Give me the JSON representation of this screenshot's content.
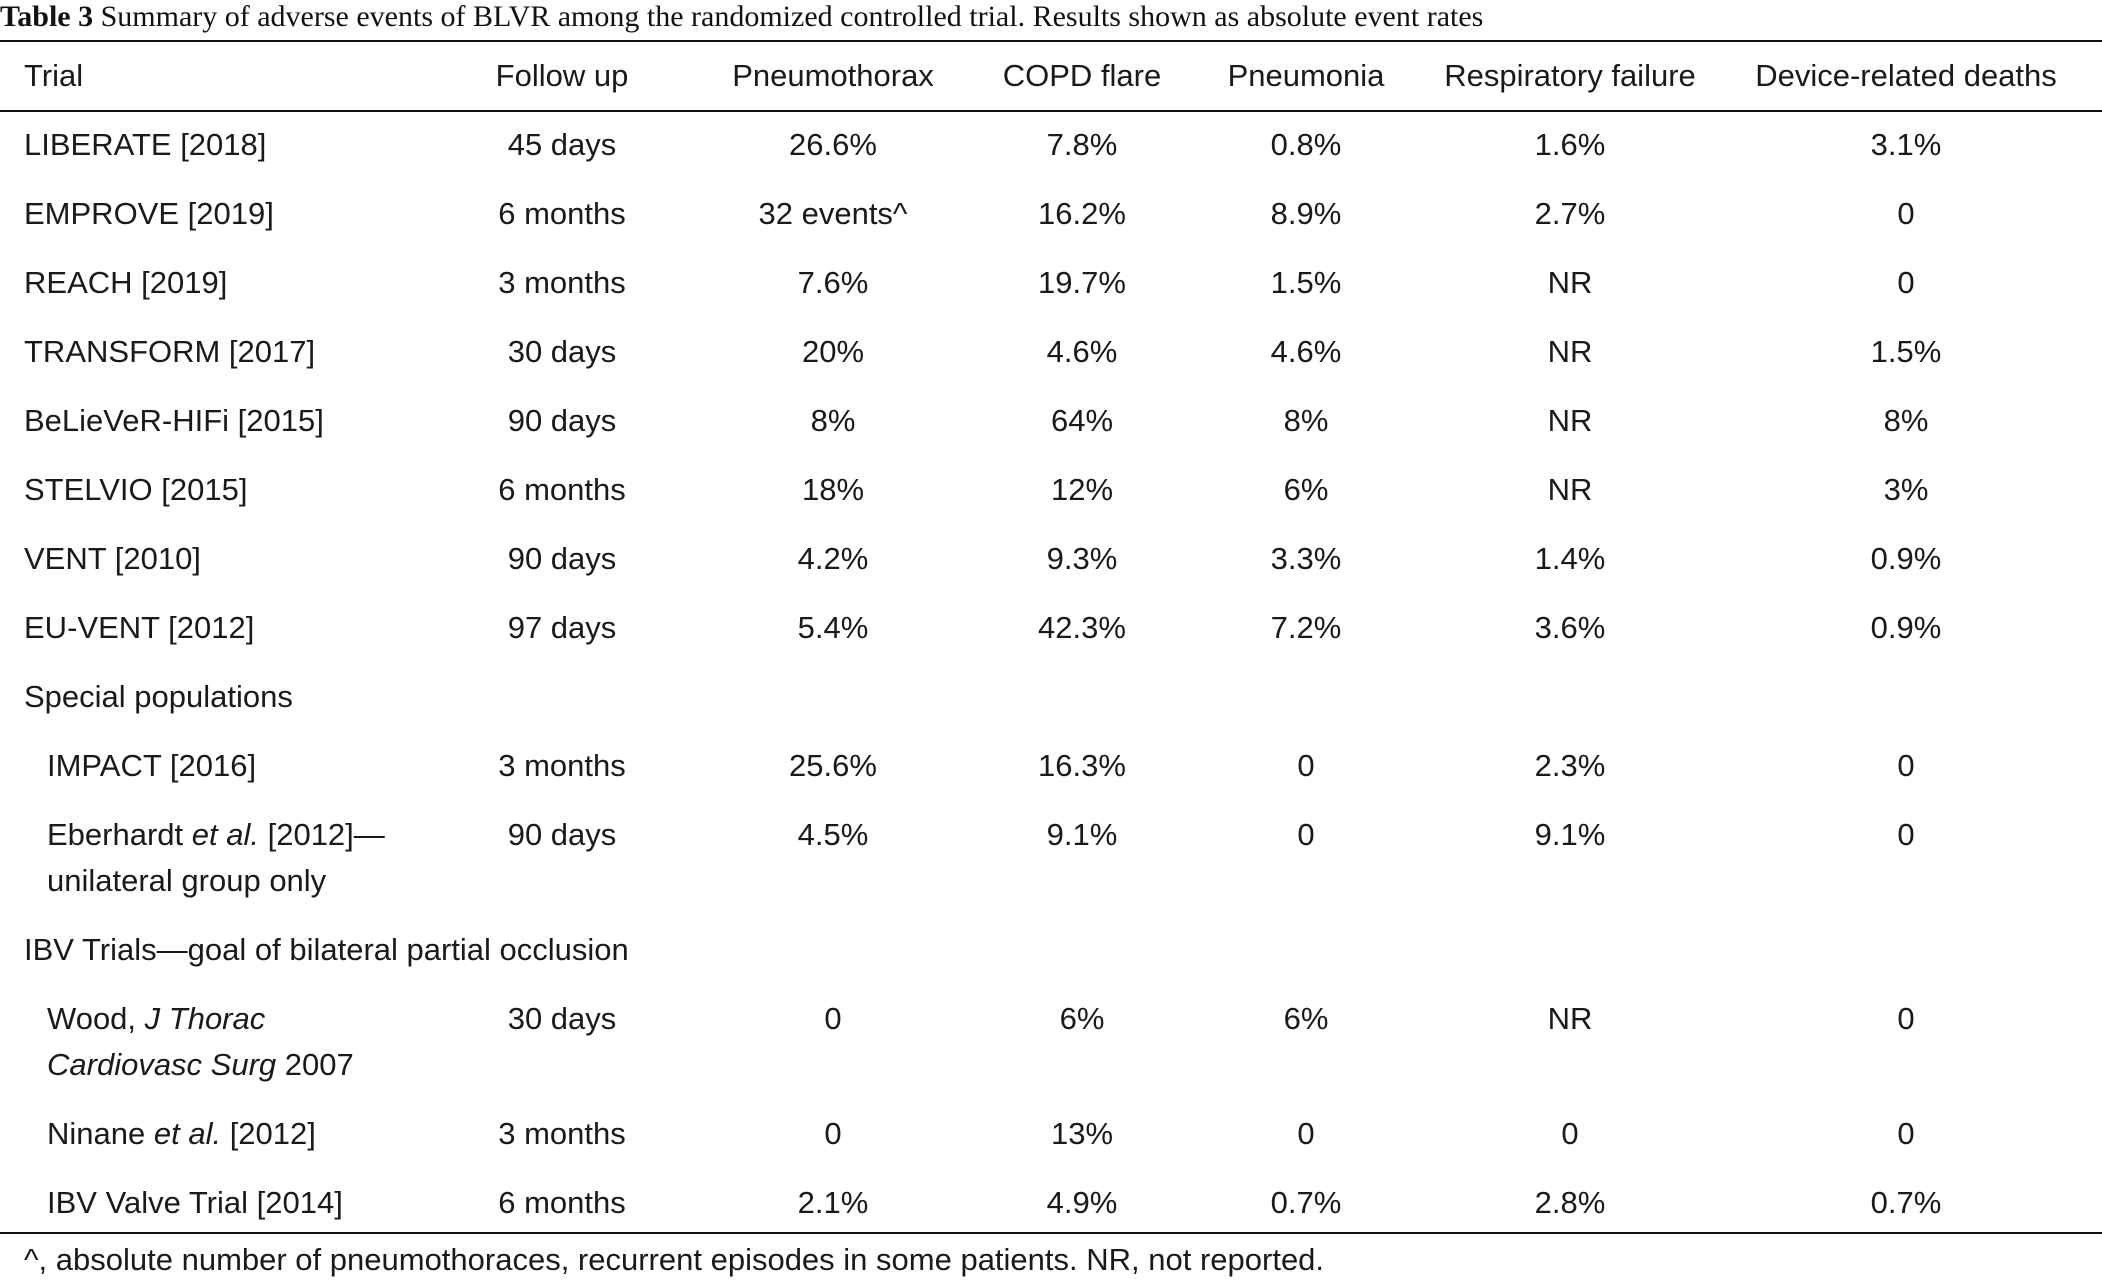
{
  "caption": {
    "label": "Table 3",
    "text": "Summary of adverse events of BLVR among the randomized controlled trial. Results shown as absolute event rates"
  },
  "headers": [
    "Trial",
    "Follow up",
    "Pneumothorax",
    "COPD flare",
    "Pneumonia",
    "Respiratory failure",
    "Device-related deaths"
  ],
  "rows": [
    {
      "trial": "LIBERATE [2018]",
      "follow_up": "45 days",
      "pneumothorax": "26.6%",
      "copd_flare": "7.8%",
      "pneumonia": "0.8%",
      "resp_failure": "1.6%",
      "deaths": "3.1%"
    },
    {
      "trial": "EMPROVE [2019]",
      "follow_up": "6 months",
      "pneumothorax": "32 events^",
      "copd_flare": "16.2%",
      "pneumonia": "8.9%",
      "resp_failure": "2.7%",
      "deaths": "0"
    },
    {
      "trial": "REACH [2019]",
      "follow_up": "3 months",
      "pneumothorax": "7.6%",
      "copd_flare": "19.7%",
      "pneumonia": "1.5%",
      "resp_failure": "NR",
      "deaths": "0"
    },
    {
      "trial": "TRANSFORM [2017]",
      "follow_up": "30 days",
      "pneumothorax": "20%",
      "copd_flare": "4.6%",
      "pneumonia": "4.6%",
      "resp_failure": "NR",
      "deaths": "1.5%"
    },
    {
      "trial": "BeLieVeR-HIFi [2015]",
      "follow_up": "90 days",
      "pneumothorax": "8%",
      "copd_flare": "64%",
      "pneumonia": "8%",
      "resp_failure": "NR",
      "deaths": "8%"
    },
    {
      "trial": "STELVIO [2015]",
      "follow_up": "6 months",
      "pneumothorax": "18%",
      "copd_flare": "12%",
      "pneumonia": "6%",
      "resp_failure": "NR",
      "deaths": "3%"
    },
    {
      "trial": "VENT [2010]",
      "follow_up": "90 days",
      "pneumothorax": "4.2%",
      "copd_flare": "9.3%",
      "pneumonia": "3.3%",
      "resp_failure": "1.4%",
      "deaths": "0.9%"
    },
    {
      "trial": "EU-VENT [2012]",
      "follow_up": "97 days",
      "pneumothorax": "5.4%",
      "copd_flare": "42.3%",
      "pneumonia": "7.2%",
      "resp_failure": "3.6%",
      "deaths": "0.9%"
    }
  ],
  "section_special": "Special populations",
  "special_rows": [
    {
      "trial": "IMPACT [2016]",
      "follow_up": "3 months",
      "pneumothorax": "25.6%",
      "copd_flare": "16.3%",
      "pneumonia": "0",
      "resp_failure": "2.3%",
      "deaths": "0"
    },
    {
      "trial_part1": "Eberhardt ",
      "trial_italic": "et al.",
      "trial_part2": " [2012]—",
      "trial_line2": "unilateral group only",
      "follow_up": "90 days",
      "pneumothorax": "4.5%",
      "copd_flare": "9.1%",
      "pneumonia": "0",
      "resp_failure": "9.1%",
      "deaths": "0"
    }
  ],
  "section_ibv": "IBV Trials—goal of bilateral partial occlusion",
  "ibv_rows": [
    {
      "trial_part1": "Wood, ",
      "trial_italic": "J Thorac",
      "trial_line2_italic": "Cardiovasc Surg",
      "trial_line2_rest": " 2007",
      "follow_up": "30 days",
      "pneumothorax": "0",
      "copd_flare": "6%",
      "pneumonia": "6%",
      "resp_failure": "NR",
      "deaths": "0"
    },
    {
      "trial_part1": "Ninane ",
      "trial_italic": "et al.",
      "trial_part2": " [2012]",
      "follow_up": "3 months",
      "pneumothorax": "0",
      "copd_flare": "13%",
      "pneumonia": "0",
      "resp_failure": "0",
      "deaths": "0"
    },
    {
      "trial": "IBV Valve Trial [2014]",
      "follow_up": "6 months",
      "pneumothorax": "2.1%",
      "copd_flare": "4.9%",
      "pneumonia": "0.7%",
      "resp_failure": "2.8%",
      "deaths": "0.7%"
    }
  ],
  "footnote": "^, absolute number of pneumothoraces, recurrent episodes in some patients. NR, not reported."
}
